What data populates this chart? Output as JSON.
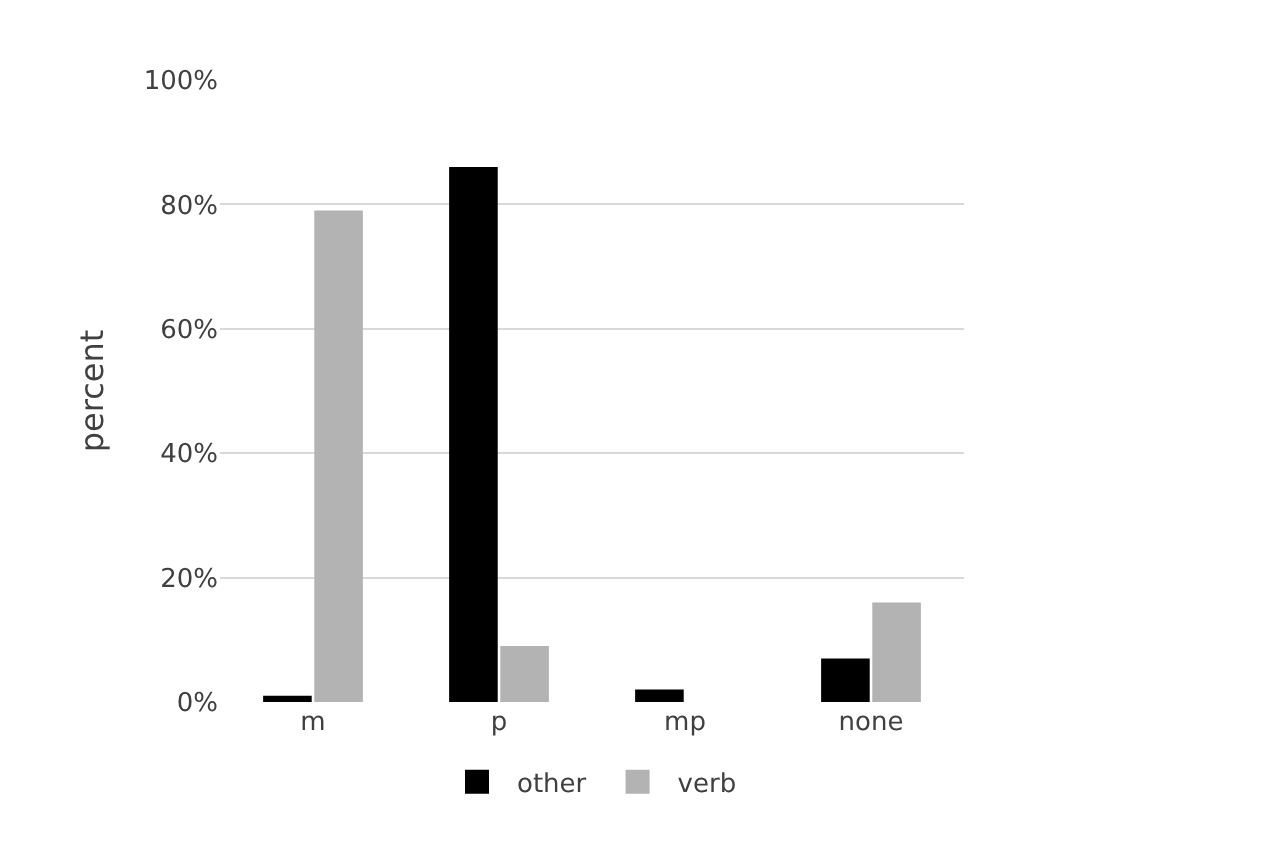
{
  "chart_data": {
    "type": "bar",
    "ylabel": "percent",
    "categories": [
      "m",
      "p",
      "mp",
      "none"
    ],
    "series": [
      {
        "name": "other",
        "color": "#000000",
        "values": [
          1,
          86,
          2,
          7
        ]
      },
      {
        "name": "verb",
        "color": "#b3b3b3",
        "values": [
          79,
          9,
          0,
          16
        ]
      }
    ],
    "ylim": [
      0,
      100
    ],
    "yticks": [
      {
        "value": 0,
        "label": "0%"
      },
      {
        "value": 20,
        "label": "20%"
      },
      {
        "value": 40,
        "label": "40%"
      },
      {
        "value": 60,
        "label": "60%"
      },
      {
        "value": 80,
        "label": "80%"
      },
      {
        "value": 100,
        "label": "100%"
      }
    ],
    "grid": "y",
    "legend": "bottom"
  }
}
